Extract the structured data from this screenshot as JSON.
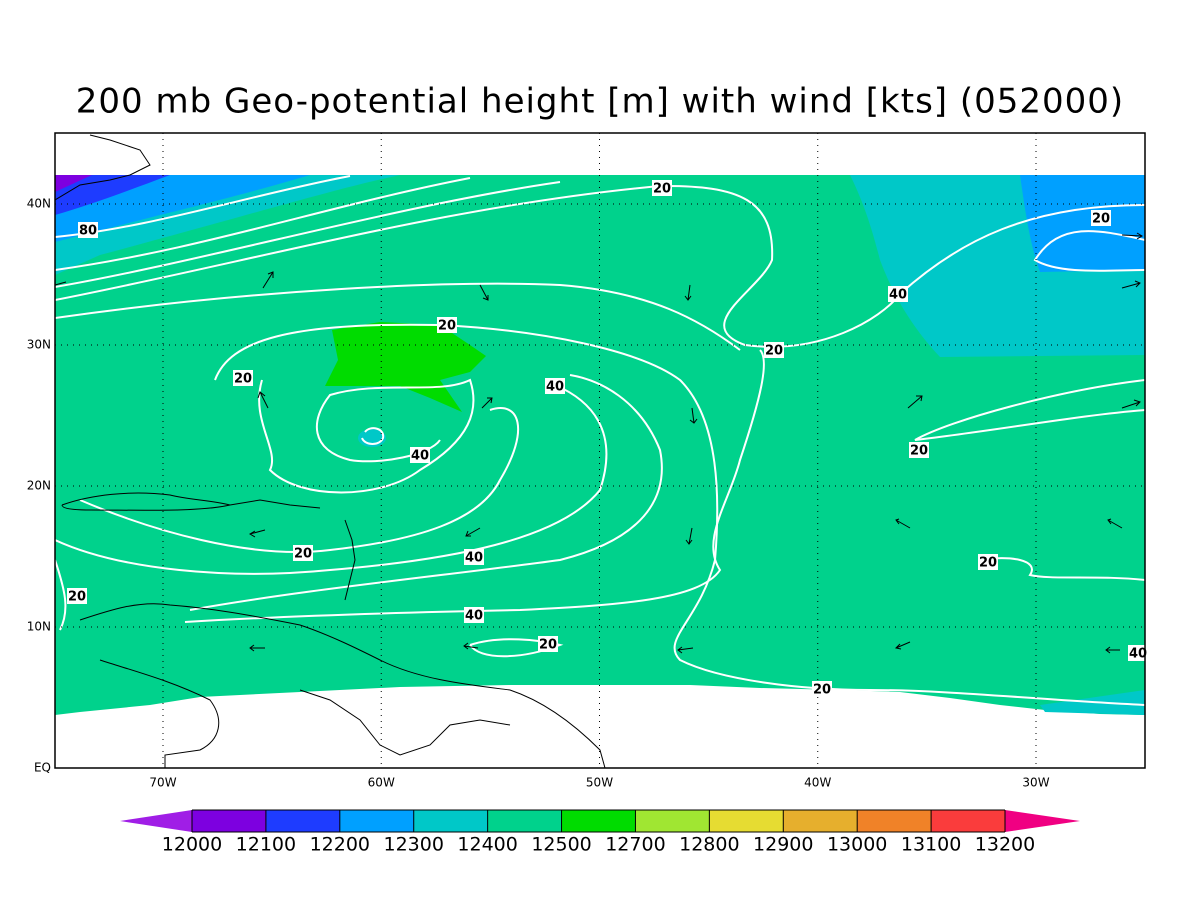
{
  "title": "200 mb Geo-potential height [m] with wind [kts] (052000)",
  "map": {
    "lat_labels": [
      "EQ",
      "10N",
      "20N",
      "30N",
      "40N"
    ],
    "lon_labels": [
      "70W",
      "60W",
      "50W",
      "40W",
      "30W"
    ],
    "contour_labels": [
      80,
      20,
      20,
      40,
      20,
      20,
      20,
      40,
      40,
      20,
      20,
      40,
      20,
      20,
      40,
      20,
      40,
      20
    ]
  },
  "colorbar": {
    "levels": [
      12000,
      12100,
      12200,
      12300,
      12400,
      12500,
      12700,
      12800,
      12900,
      13000,
      13100,
      13200
    ],
    "colors": [
      "#a01ee6",
      "#7d00e0",
      "#1e3cff",
      "#00a0ff",
      "#00c8c8",
      "#00d28c",
      "#00dc00",
      "#a0e632",
      "#e6dc32",
      "#e6af2d",
      "#f08228",
      "#fa3c3c",
      "#f00082"
    ]
  }
}
